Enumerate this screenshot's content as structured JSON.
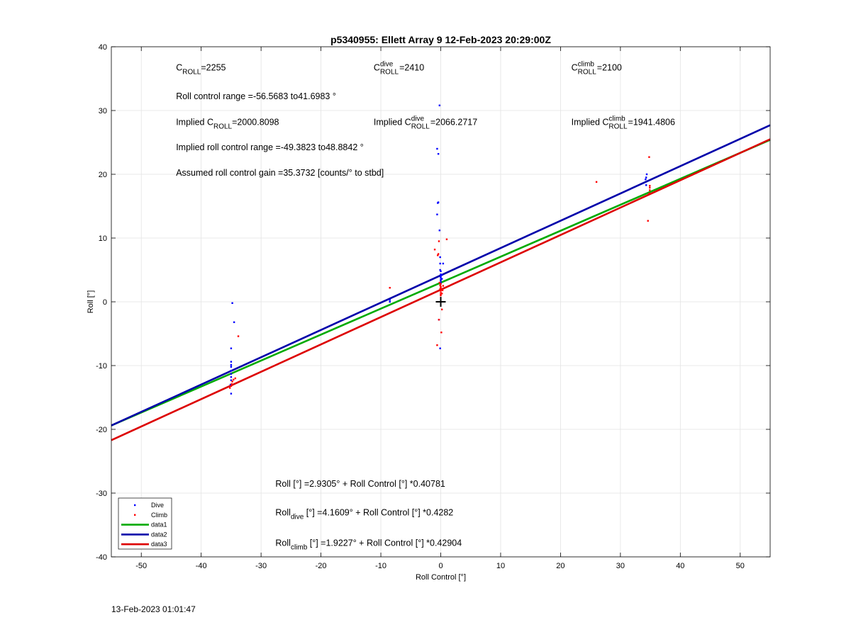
{
  "chart_data": {
    "type": "scatter",
    "title": "p5340955: Ellett Array 9 12-Feb-2023 20:29:00Z",
    "xlabel": "Roll Control [°]",
    "ylabel": "Roll [°]",
    "xlim": [
      -55,
      55
    ],
    "ylim": [
      -40,
      40
    ],
    "xticks": [
      -50,
      -40,
      -30,
      -20,
      -10,
      0,
      10,
      20,
      30,
      40,
      50
    ],
    "yticks": [
      -40,
      -30,
      -20,
      -10,
      0,
      10,
      20,
      30,
      40
    ],
    "grid": true,
    "legend_position": "bottom-left",
    "colors": {
      "dive": "#0000ff",
      "climb": "#ff0000",
      "data1": "#00aa00",
      "data2": "#0000aa",
      "data3": "#dd0000"
    },
    "series": [
      {
        "name": "Dive",
        "style": "points",
        "x": [
          -35.0,
          -35.0,
          -35.0,
          -35.0,
          -35.0,
          -35.0,
          -35.0,
          -35.0,
          -35.0,
          -35.1,
          -34.8,
          -34.5,
          -8.5,
          -8.5,
          -0.6,
          -0.6,
          -0.5,
          -0.4,
          -0.4,
          -0.2,
          -0.2,
          -0.1,
          -0.1,
          -0.1,
          0.0,
          0.0,
          0.0,
          0.0,
          0.0,
          0.0,
          0.0,
          0.2,
          0.2,
          0.4,
          -0.3,
          -0.1,
          34.3,
          34.3,
          34.4,
          34.2
        ],
        "y": [
          -14.4,
          -12.3,
          -11.8,
          -11.3,
          -10.8,
          -10.2,
          -9.9,
          -9.4,
          -7.3,
          -13.0,
          -0.2,
          -3.2,
          0.3,
          0.0,
          24.0,
          13.7,
          15.5,
          15.6,
          23.2,
          11.2,
          30.8,
          6.0,
          7.0,
          5.0,
          4.8,
          4.3,
          4.0,
          3.8,
          3.5,
          3.3,
          3.0,
          4.2,
          3.6,
          6.0,
          -2.8,
          -7.3,
          18.3,
          19.5,
          20.0,
          19.2
        ]
      },
      {
        "name": "Climb",
        "style": "points",
        "x": [
          -35.2,
          -35.0,
          -34.9,
          -34.8,
          -34.6,
          -34.3,
          -33.8,
          -8.5,
          -1.0,
          -0.6,
          -0.5,
          -0.4,
          -0.3,
          -0.2,
          -0.1,
          -0.1,
          0.0,
          0.0,
          0.0,
          0.0,
          0.0,
          0.0,
          0.0,
          0.1,
          0.2,
          0.3,
          0.4,
          1.0,
          -0.3,
          0.1,
          0.2,
          26.0,
          34.6,
          34.8,
          34.8,
          34.9,
          34.9,
          34.9
        ],
        "y": [
          -13.5,
          -13.2,
          -12.9,
          -12.5,
          -12.2,
          -12.0,
          -5.4,
          2.2,
          8.2,
          -6.8,
          7.3,
          7.5,
          9.5,
          3.0,
          2.0,
          2.6,
          1.5,
          1.8,
          2.2,
          2.4,
          2.8,
          1.2,
          1.0,
          2.0,
          1.3,
          1.8,
          2.5,
          9.8,
          -2.8,
          -4.8,
          -1.2,
          18.8,
          12.7,
          22.7,
          17.0,
          17.9,
          18.2,
          17.5
        ]
      },
      {
        "name": "data1",
        "style": "line",
        "x": [
          -55,
          55
        ],
        "y": [
          -19.4,
          25.4
        ]
      },
      {
        "name": "data2",
        "style": "line",
        "x": [
          -55,
          55
        ],
        "y": [
          -19.4,
          27.7
        ]
      },
      {
        "name": "data3",
        "style": "line",
        "x": [
          -55,
          55
        ],
        "y": [
          -21.7,
          25.5
        ]
      }
    ],
    "marker": {
      "x": 0,
      "y": 0,
      "shape": "plus",
      "color": "#000000"
    },
    "annotations": [
      {
        "base": "C",
        "sub": "ROLL",
        "sup": "",
        "text": "=2255",
        "x": -44.2,
        "y": 36.3
      },
      {
        "base": "C",
        "sub": "ROLL",
        "sup": "dive",
        "text": "=2410",
        "x": -11.2,
        "y": 36.3
      },
      {
        "base": "C",
        "sub": "ROLL",
        "sup": "climb",
        "text": "=2100",
        "x": 21.8,
        "y": 36.3
      },
      {
        "base": "",
        "sub": "",
        "sup": "",
        "text": "Roll control range =-56.5683 to41.6983 °",
        "x": -44.2,
        "y": 31.8
      },
      {
        "base": "Implied C",
        "sub": "ROLL",
        "sup": "",
        "text": "=2000.8098",
        "x": -44.2,
        "y": 27.7
      },
      {
        "base": "Implied C",
        "sub": "ROLL",
        "sup": "dive",
        "text": "=2066.2717",
        "x": -11.2,
        "y": 27.7
      },
      {
        "base": "Implied C",
        "sub": "ROLL",
        "sup": "climb",
        "text": "=1941.4806",
        "x": 21.8,
        "y": 27.7
      },
      {
        "base": "",
        "sub": "",
        "sup": "",
        "text": "Implied roll control range =-49.3823 to48.8842 °",
        "x": -44.2,
        "y": 23.8
      },
      {
        "base": "",
        "sub": "",
        "sup": "",
        "text": "Assumed roll control gain =35.3732 [counts/° to stbd]",
        "x": -44.2,
        "y": 19.8
      },
      {
        "base": "Roll",
        "sub": "",
        "sup": "",
        "text": " [°] =2.9305° + Roll Control [°] *0.40781",
        "x": -27.6,
        "y": -29.0
      },
      {
        "base": "Roll",
        "sub": "dive",
        "sup": "",
        "text": " [°] =4.1609° + Roll Control [°] *0.4282",
        "x": -27.6,
        "y": -33.5
      },
      {
        "base": "Roll",
        "sub": "climb",
        "sup": "",
        "text": " [°] =1.9227° + Roll Control [°] *0.42904",
        "x": -27.6,
        "y": -38.3
      }
    ]
  },
  "footer": {
    "timestamp": "13-Feb-2023 01:01:47"
  }
}
